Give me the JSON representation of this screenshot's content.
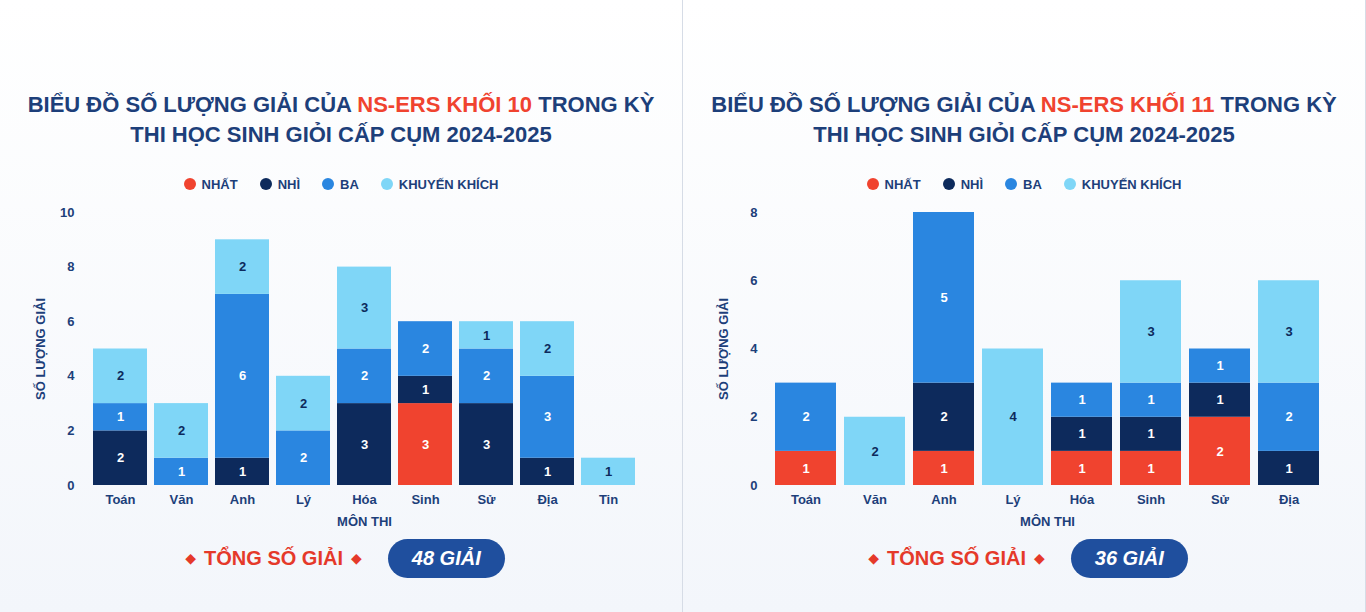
{
  "chart_data": [
    {
      "type": "bar",
      "stacked": true,
      "data_labels": true,
      "grid": false,
      "legend": "top",
      "title": "BIỂU ĐỒ SỐ LƯỢNG GIẢI CỦA NS-ERS KHỐI 10 TRONG KỲ THI HỌC SINH GIỎI CẤP CỤM 2024-2025",
      "title_highlight": "NS-ERS KHỐI 10",
      "x_label": "MÔN THI",
      "y_label": "SỐ LƯỢNG GIẢI",
      "categories": [
        "Toán",
        "Văn",
        "Anh",
        "Lý",
        "Hóa",
        "Sinh",
        "Sử",
        "Địa",
        "Tin"
      ],
      "series": [
        {
          "name": "NHẤT",
          "color": "#f0432f",
          "values": [
            0,
            0,
            0,
            0,
            0,
            3,
            0,
            0,
            0
          ]
        },
        {
          "name": "NHÌ",
          "color": "#0d2a5c",
          "values": [
            2,
            0,
            1,
            0,
            3,
            1,
            3,
            1,
            0
          ]
        },
        {
          "name": "BA",
          "color": "#2a86e0",
          "values": [
            1,
            1,
            6,
            2,
            2,
            2,
            2,
            3,
            0
          ]
        },
        {
          "name": "KHUYẾN KHÍCH",
          "color": "#7fd6f7",
          "values": [
            2,
            2,
            2,
            2,
            3,
            0,
            1,
            2,
            1
          ]
        }
      ],
      "ylim": [
        0,
        10
      ],
      "yticks": [
        0,
        2,
        4,
        6,
        8,
        10
      ],
      "total_label": "TỔNG SỐ GIẢI",
      "total_text": "48 GIẢI"
    },
    {
      "type": "bar",
      "stacked": true,
      "data_labels": true,
      "grid": false,
      "legend": "top",
      "title": "BIỂU ĐỒ SỐ LƯỢNG GIẢI CỦA NS-ERS KHỐI 11 TRONG KỲ THI HỌC SINH GIỎI CẤP CỤM 2024-2025",
      "title_highlight": "NS-ERS KHỐI 11",
      "x_label": "MÔN THI",
      "y_label": "SỐ LƯỢNG GIẢI",
      "categories": [
        "Toán",
        "Văn",
        "Anh",
        "Lý",
        "Hóa",
        "Sinh",
        "Sử",
        "Địa"
      ],
      "series": [
        {
          "name": "NHẤT",
          "color": "#f0432f",
          "values": [
            1,
            0,
            1,
            0,
            1,
            1,
            2,
            0
          ]
        },
        {
          "name": "NHÌ",
          "color": "#0d2a5c",
          "values": [
            0,
            0,
            2,
            0,
            1,
            1,
            1,
            1
          ]
        },
        {
          "name": "BA",
          "color": "#2a86e0",
          "values": [
            2,
            0,
            5,
            0,
            1,
            1,
            1,
            2
          ]
        },
        {
          "name": "KHUYẾN KHÍCH",
          "color": "#7fd6f7",
          "values": [
            0,
            2,
            0,
            4,
            0,
            3,
            0,
            3
          ]
        }
      ],
      "ylim": [
        0,
        8
      ],
      "yticks": [
        0,
        2,
        4,
        6,
        8
      ],
      "total_label": "TỔNG SỐ GIẢI",
      "total_text": "36 GIẢI"
    }
  ]
}
